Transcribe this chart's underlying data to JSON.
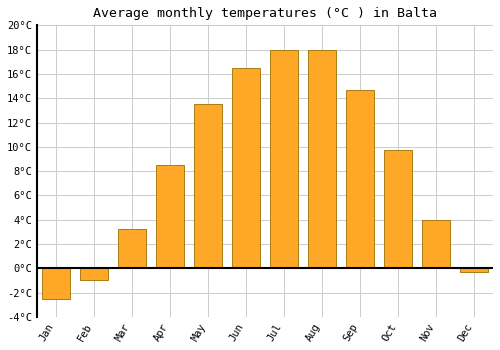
{
  "title": "Average monthly temperatures (°C ) in Balta",
  "months": [
    "Jan",
    "Feb",
    "Mar",
    "Apr",
    "May",
    "Jun",
    "Jul",
    "Aug",
    "Sep",
    "Oct",
    "Nov",
    "Dec"
  ],
  "values": [
    -2.5,
    -1.0,
    3.2,
    8.5,
    13.5,
    16.5,
    18.0,
    18.0,
    14.7,
    9.7,
    4.0,
    -0.3
  ],
  "bar_color": "#FFA726",
  "bar_edge_color": "#9E7000",
  "ylim": [
    -4,
    20
  ],
  "yticks": [
    -4,
    -2,
    0,
    2,
    4,
    6,
    8,
    10,
    12,
    14,
    16,
    18,
    20
  ],
  "background_color": "#ffffff",
  "grid_color": "#cccccc",
  "title_fontsize": 9.5,
  "tick_fontsize": 7.5,
  "zero_line_color": "#000000",
  "left_spine_color": "#000000"
}
